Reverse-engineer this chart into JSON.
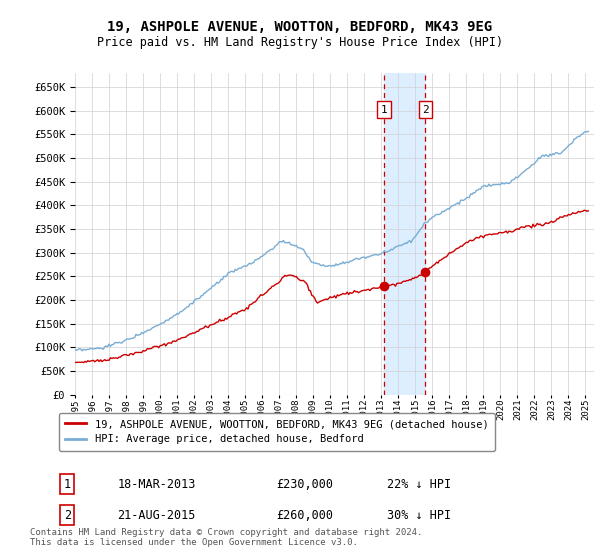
{
  "title": "19, ASHPOLE AVENUE, WOOTTON, BEDFORD, MK43 9EG",
  "subtitle": "Price paid vs. HM Land Registry's House Price Index (HPI)",
  "legend_line1": "19, ASHPOLE AVENUE, WOOTTON, BEDFORD, MK43 9EG (detached house)",
  "legend_line2": "HPI: Average price, detached house, Bedford",
  "transaction1_label": "1",
  "transaction1_date": "18-MAR-2013",
  "transaction1_price": 230000,
  "transaction1_text": "22% ↓ HPI",
  "transaction2_label": "2",
  "transaction2_date": "21-AUG-2015",
  "transaction2_price": 260000,
  "transaction2_text": "30% ↓ HPI",
  "footer": "Contains HM Land Registry data © Crown copyright and database right 2024.\nThis data is licensed under the Open Government Licence v3.0.",
  "hpi_color": "#7aadd4",
  "price_color": "#cc0000",
  "transaction_color": "#cc0000",
  "marker_color": "#cc0000",
  "highlight_color": "#ddeeff",
  "ylim": [
    0,
    680000
  ],
  "yticks": [
    0,
    50000,
    100000,
    150000,
    200000,
    250000,
    300000,
    350000,
    400000,
    450000,
    500000,
    550000,
    600000,
    650000
  ],
  "xlim_start": 1995,
  "xlim_end": 2025.5
}
